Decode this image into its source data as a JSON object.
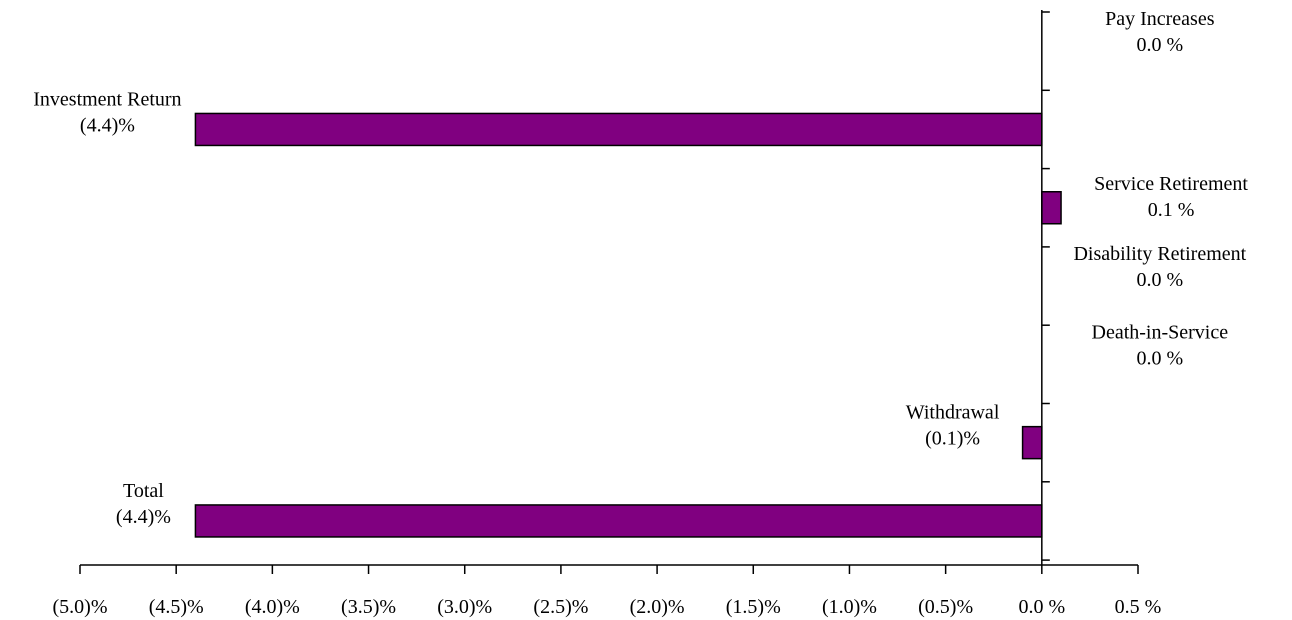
{
  "chart_data": {
    "type": "bar",
    "orientation": "horizontal",
    "categories": [
      "Pay Increases",
      "Investment Return",
      "Service Retirement",
      "Disability Retirement",
      "Death-in-Service",
      "Withdrawal",
      "Total"
    ],
    "values": [
      0.0,
      -4.4,
      0.1,
      0.0,
      0.0,
      -0.1,
      -4.4
    ],
    "value_labels": [
      "0.0 %",
      "(4.4)%",
      "0.1 %",
      "0.0 %",
      "0.0 %",
      "(0.1)%",
      "(4.4)%"
    ],
    "xlim": [
      -5.0,
      0.5
    ],
    "x_ticks": [
      -5.0,
      -4.5,
      -4.0,
      -3.5,
      -3.0,
      -2.5,
      -2.0,
      -1.5,
      -1.0,
      -0.5,
      0.0,
      0.5
    ],
    "x_tick_labels": [
      "(5.0)%",
      "(4.5)%",
      "(4.0)%",
      "(3.5)%",
      "(3.0)%",
      "(2.5)%",
      "(2.0)%",
      "(1.5)%",
      "(1.0)%",
      "(0.5)%",
      "0.0 %",
      "0.5 %"
    ],
    "title": "",
    "xlabel": "",
    "ylabel": "",
    "grid": false,
    "legend": "none",
    "bar_color": "#800080"
  }
}
